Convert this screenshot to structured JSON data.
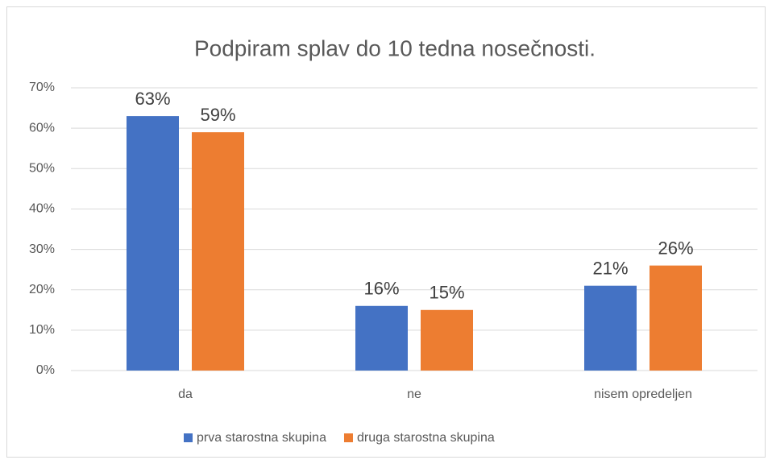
{
  "chart_data": {
    "type": "bar",
    "title": "Podpiram splav do 10 tedna nosečnosti.",
    "categories": [
      "da",
      "ne",
      "nisem opredeljen"
    ],
    "series": [
      {
        "name": "prva starostna skupina",
        "color": "#4472c4",
        "values": [
          63,
          16,
          21
        ],
        "value_labels": [
          "63%",
          "16%",
          "21%"
        ]
      },
      {
        "name": "druga starostna skupina",
        "color": "#ed7d31",
        "values": [
          59,
          15,
          26
        ],
        "value_labels": [
          "59%",
          "15%",
          "26%"
        ]
      }
    ],
    "ylim": [
      0,
      70
    ],
    "yticks": [
      {
        "value": 0,
        "label": "0%"
      },
      {
        "value": 10,
        "label": "10%"
      },
      {
        "value": 20,
        "label": "20%"
      },
      {
        "value": 30,
        "label": "30%"
      },
      {
        "value": 40,
        "label": "40%"
      },
      {
        "value": 50,
        "label": "50%"
      },
      {
        "value": 60,
        "label": "60%"
      },
      {
        "value": 70,
        "label": "70%"
      }
    ],
    "grid": true,
    "legend": "bottom"
  }
}
